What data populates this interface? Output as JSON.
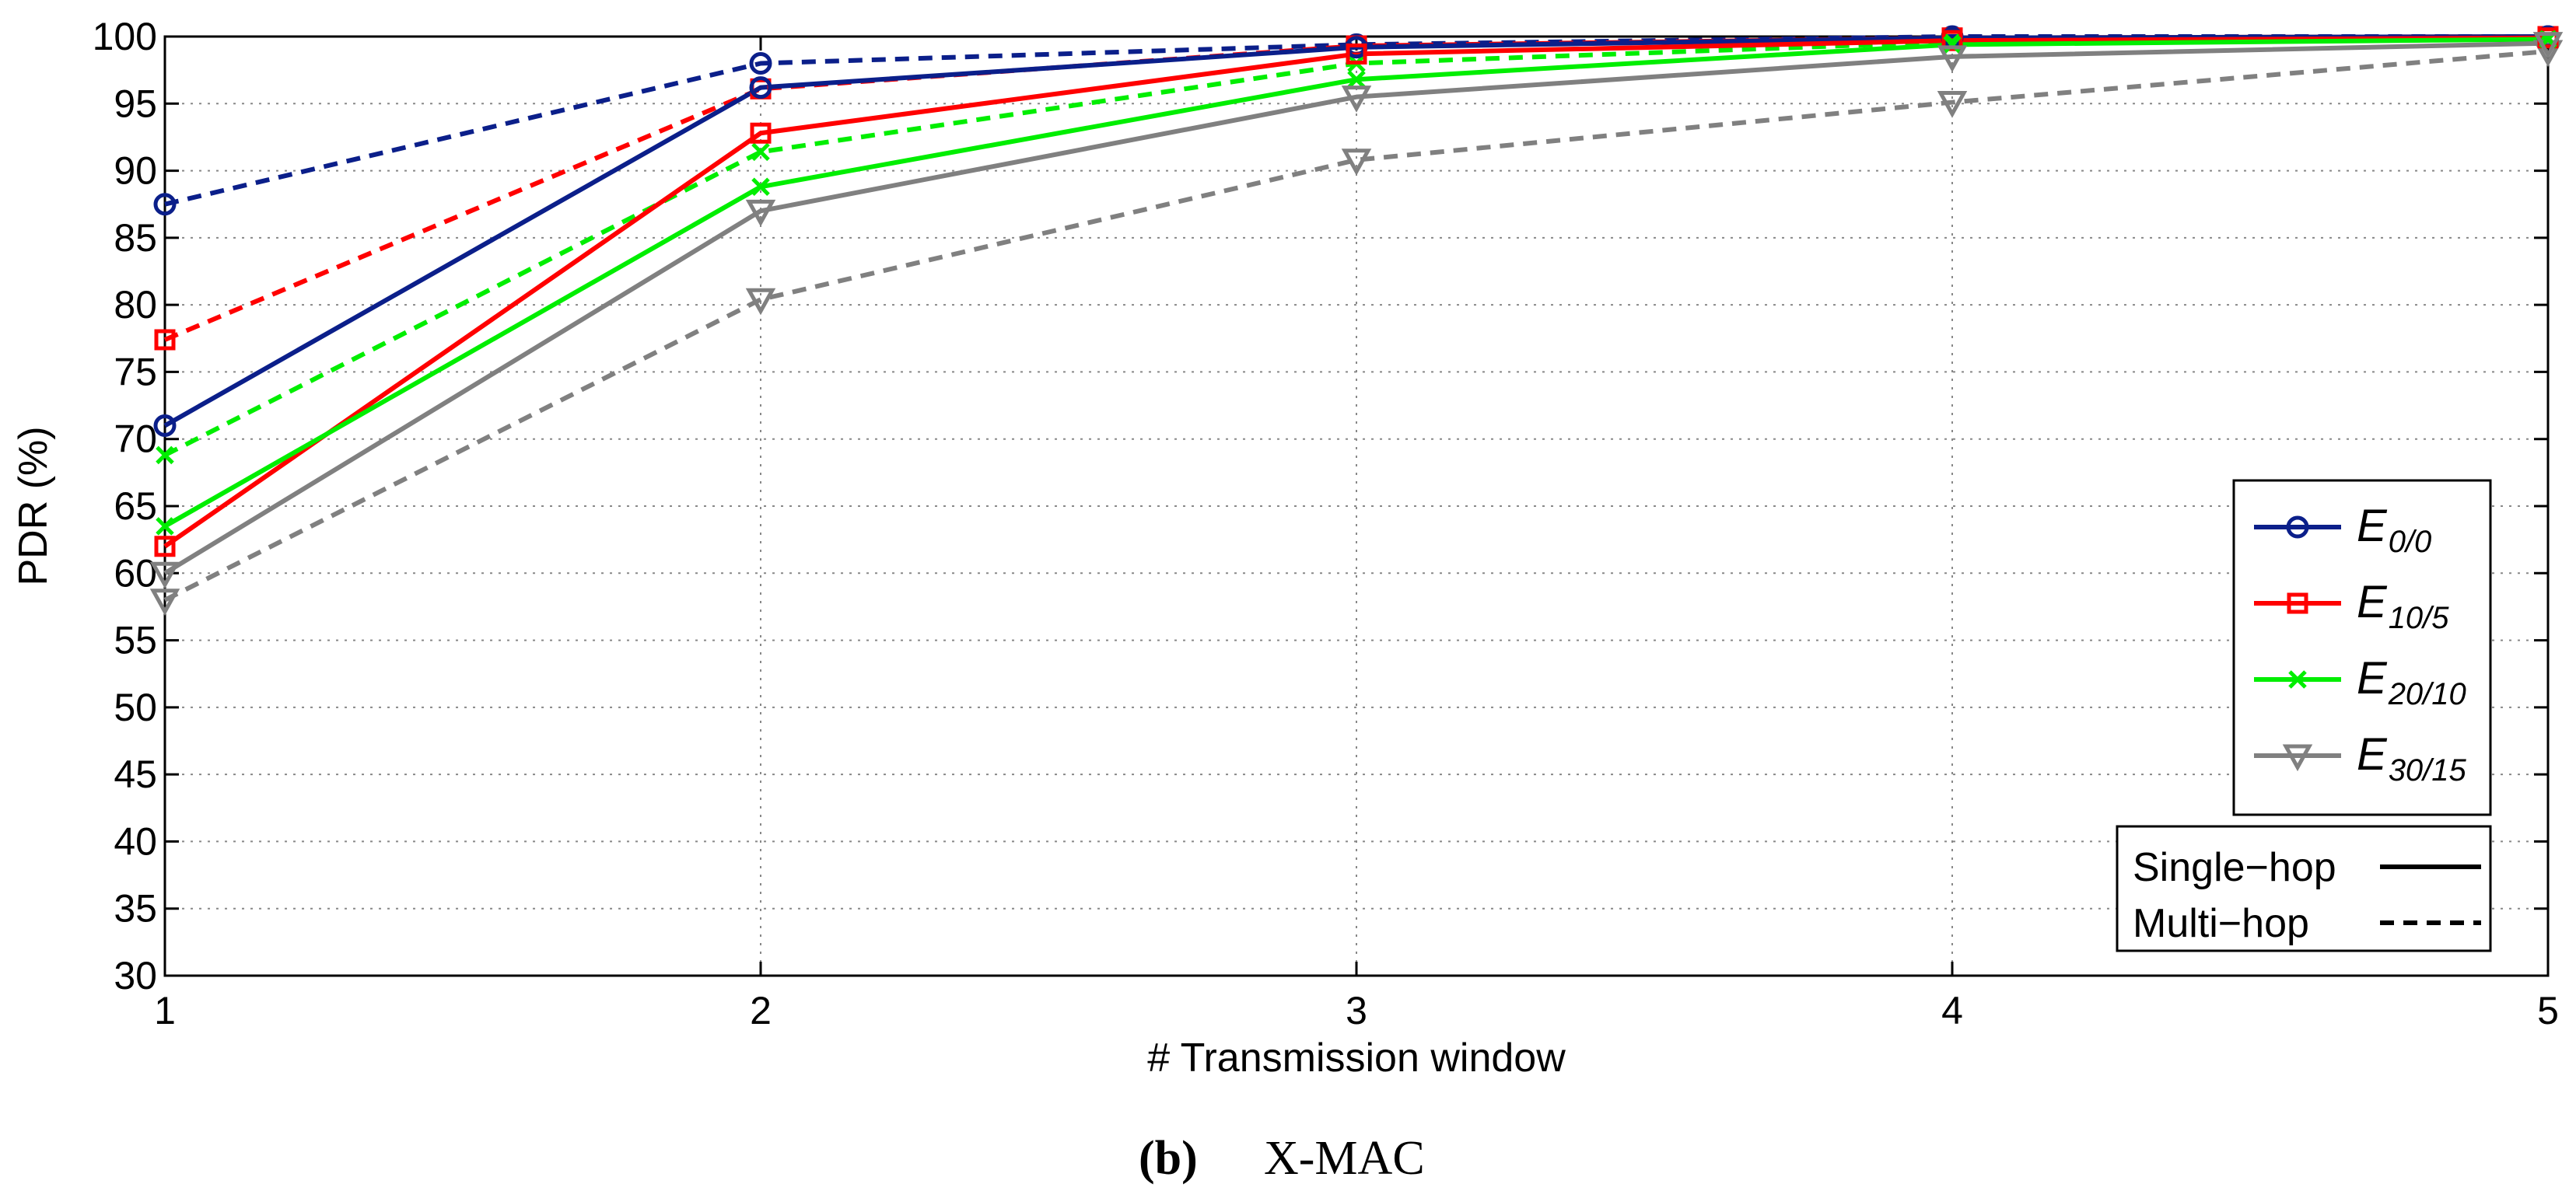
{
  "chart_data": {
    "type": "line",
    "title": "",
    "xlabel": "# Transmission window",
    "ylabel": "PDR (%)",
    "x": [
      1,
      2,
      3,
      4,
      5
    ],
    "xlim": [
      1,
      5
    ],
    "ylim": [
      30,
      100
    ],
    "xticks": [
      "1",
      "2",
      "3",
      "4",
      "5"
    ],
    "yticks": [
      "30",
      "35",
      "40",
      "45",
      "50",
      "55",
      "60",
      "65",
      "70",
      "75",
      "80",
      "85",
      "90",
      "95",
      "100"
    ],
    "grid": true,
    "legend_position": "right",
    "series": [
      {
        "name": "E_{0/0}",
        "main": "E",
        "sub": "0/0",
        "color": "#0b1f8a",
        "marker": "circle",
        "hop": "single",
        "values": [
          71.0,
          96.2,
          99.2,
          99.9,
          100.0
        ]
      },
      {
        "name": "E_{10/5}",
        "main": "E",
        "sub": "10/5",
        "color": "#ff0000",
        "marker": "square",
        "hop": "single",
        "values": [
          62.0,
          92.8,
          98.7,
          99.7,
          99.9
        ]
      },
      {
        "name": "E_{20/10}",
        "main": "E",
        "sub": "20/10",
        "color": "#00ee00",
        "marker": "x",
        "hop": "single",
        "values": [
          63.5,
          88.8,
          96.8,
          99.4,
          99.8
        ]
      },
      {
        "name": "E_{30/15}",
        "main": "E",
        "sub": "30/15",
        "color": "#808080",
        "marker": "triangle-down",
        "hop": "single",
        "values": [
          60.0,
          87.0,
          95.5,
          98.5,
          99.5
        ]
      },
      {
        "name": "E_{0/0} multi-hop",
        "main": "E",
        "sub": "0/0",
        "color": "#0b1f8a",
        "marker": "circle",
        "hop": "multi",
        "values": [
          87.5,
          98.0,
          99.4,
          100.0,
          100.0
        ]
      },
      {
        "name": "E_{10/5} multi-hop",
        "main": "E",
        "sub": "10/5",
        "color": "#ff0000",
        "marker": "square",
        "hop": "multi",
        "values": [
          77.4,
          96.1,
          99.3,
          99.9,
          100.0
        ]
      },
      {
        "name": "E_{20/10} multi-hop",
        "main": "E",
        "sub": "20/10",
        "color": "#00ee00",
        "marker": "x",
        "hop": "multi",
        "values": [
          68.8,
          91.4,
          98.0,
          99.6,
          99.9
        ]
      },
      {
        "name": "E_{30/15} multi-hop",
        "main": "E",
        "sub": "30/15",
        "color": "#808080",
        "marker": "triangle-down",
        "hop": "multi",
        "values": [
          58.0,
          80.4,
          90.8,
          95.1,
          98.9
        ]
      }
    ],
    "legend": {
      "entries": [
        {
          "main": "E",
          "sub": "0/0",
          "color": "#0b1f8a",
          "marker": "circle"
        },
        {
          "main": "E",
          "sub": "10/5",
          "color": "#ff0000",
          "marker": "square"
        },
        {
          "main": "E",
          "sub": "20/10",
          "color": "#00ee00",
          "marker": "x"
        },
        {
          "main": "E",
          "sub": "30/15",
          "color": "#808080",
          "marker": "triangle-down"
        }
      ],
      "styles": [
        {
          "label": "Single−hop",
          "dash": "solid"
        },
        {
          "label": "Multi−hop",
          "dash": "dashed"
        }
      ]
    }
  },
  "caption": {
    "label": "(b)",
    "text": "X-MAC"
  }
}
